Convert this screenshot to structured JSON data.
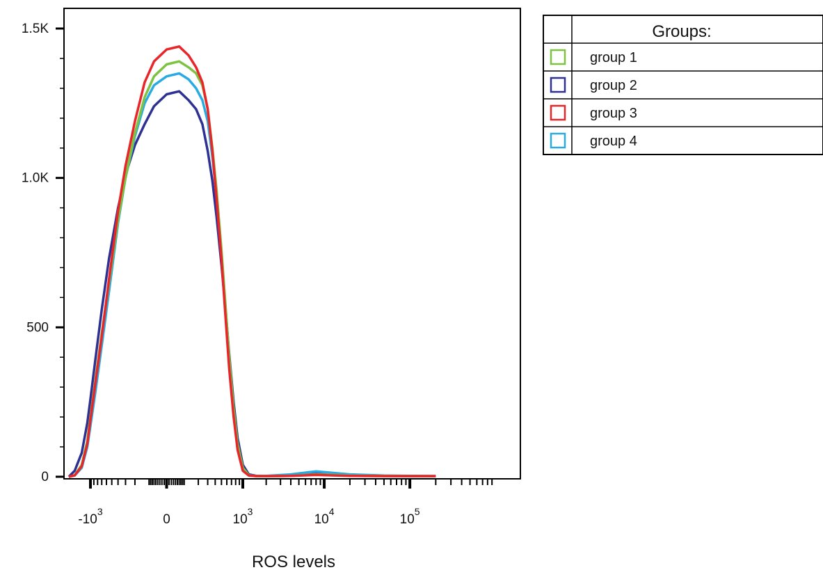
{
  "chart_data": {
    "type": "line",
    "xlabel": "ROS levels",
    "ylabel": "",
    "x_scale": "biexponential",
    "xlim": [
      -2000,
      200000
    ],
    "ylim": [
      0,
      1600
    ],
    "y_ticks": [
      {
        "value": 0,
        "label": "0"
      },
      {
        "value": 500,
        "label": "500"
      },
      {
        "value": 1000,
        "label": "1.0K"
      },
      {
        "value": 1500,
        "label": "1.5K"
      }
    ],
    "x_ticks": [
      {
        "value": -1000,
        "base": "-10",
        "exp": "3"
      },
      {
        "value": 0,
        "base": "0",
        "exp": ""
      },
      {
        "value": 1000,
        "base": "10",
        "exp": "3"
      },
      {
        "value": 10000,
        "base": "10",
        "exp": "4"
      },
      {
        "value": 100000,
        "base": "10",
        "exp": "5"
      }
    ],
    "grid": false,
    "legend": {
      "title": "Groups:",
      "placement": "right"
    },
    "series": [
      {
        "name": "group 1",
        "color": "#7dc242",
        "x": [
          -1900,
          -1600,
          -1300,
          -1100,
          -1000,
          -850,
          -700,
          -550,
          -400,
          -300,
          -200,
          -120,
          -60,
          0,
          60,
          120,
          180,
          240,
          300,
          360,
          420,
          500,
          580,
          650,
          750,
          850,
          1000,
          1200,
          1500,
          2000,
          4000,
          8000,
          20000,
          50000,
          100000,
          200000
        ],
        "y": [
          0,
          5,
          40,
          120,
          200,
          330,
          480,
          650,
          860,
          1000,
          1150,
          1270,
          1340,
          1380,
          1390,
          1370,
          1350,
          1310,
          1230,
          1100,
          960,
          760,
          560,
          400,
          230,
          110,
          30,
          5,
          2,
          2,
          3,
          8,
          4,
          3,
          2,
          2
        ]
      },
      {
        "name": "group 2",
        "color": "#2e3192",
        "x": [
          -1900,
          -1600,
          -1300,
          -1100,
          -1000,
          -850,
          -700,
          -550,
          -400,
          -300,
          -200,
          -120,
          -60,
          0,
          60,
          120,
          180,
          240,
          300,
          360,
          420,
          500,
          580,
          650,
          750,
          850,
          1000,
          1200,
          1500,
          2000,
          4000,
          8000,
          20000,
          50000,
          100000,
          200000
        ],
        "y": [
          0,
          20,
          80,
          180,
          260,
          400,
          560,
          730,
          900,
          1010,
          1110,
          1180,
          1240,
          1280,
          1290,
          1260,
          1230,
          1180,
          1090,
          990,
          870,
          710,
          550,
          410,
          250,
          130,
          40,
          8,
          3,
          2,
          3,
          10,
          5,
          3,
          2,
          2
        ]
      },
      {
        "name": "group 3",
        "color": "#e8262a",
        "x": [
          -1900,
          -1600,
          -1300,
          -1100,
          -1000,
          -850,
          -700,
          -550,
          -400,
          -300,
          -200,
          -120,
          -60,
          0,
          60,
          120,
          180,
          240,
          300,
          360,
          420,
          500,
          580,
          650,
          750,
          850,
          1000,
          1200,
          1500,
          2000,
          4000,
          8000,
          20000,
          50000,
          100000,
          200000
        ],
        "y": [
          0,
          5,
          35,
          110,
          190,
          320,
          470,
          660,
          890,
          1040,
          1190,
          1320,
          1390,
          1430,
          1440,
          1410,
          1370,
          1320,
          1230,
          1090,
          930,
          730,
          520,
          360,
          200,
          90,
          20,
          4,
          2,
          2,
          3,
          6,
          3,
          2,
          2,
          2
        ]
      },
      {
        "name": "group 4",
        "color": "#29abe2",
        "x": [
          -1900,
          -1600,
          -1300,
          -1100,
          -1000,
          -850,
          -700,
          -550,
          -400,
          -300,
          -200,
          -120,
          -60,
          0,
          60,
          120,
          180,
          240,
          300,
          360,
          420,
          500,
          580,
          650,
          750,
          850,
          1000,
          1200,
          1500,
          2000,
          4000,
          8000,
          20000,
          50000,
          100000,
          200000
        ],
        "y": [
          0,
          4,
          30,
          100,
          170,
          290,
          440,
          620,
          850,
          1000,
          1140,
          1250,
          1310,
          1340,
          1350,
          1330,
          1300,
          1260,
          1190,
          1070,
          940,
          750,
          550,
          390,
          220,
          100,
          25,
          5,
          2,
          3,
          8,
          18,
          8,
          4,
          3,
          2
        ]
      }
    ]
  }
}
